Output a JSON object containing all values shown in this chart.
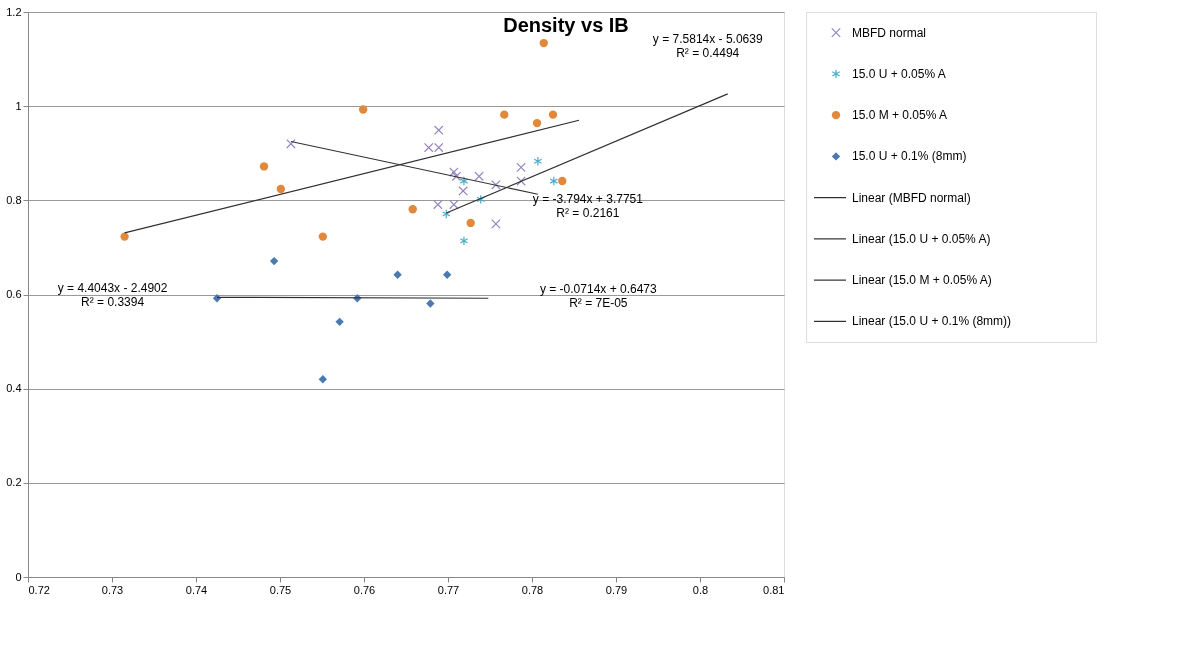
{
  "chart_data": {
    "type": "scatter",
    "title": "Density vs IB",
    "xlim": [
      0.72,
      0.81
    ],
    "xticks": [
      0.72,
      0.73,
      0.74,
      0.75,
      0.76,
      0.77,
      0.78,
      0.79,
      0.8,
      0.81
    ],
    "ylim": [
      0,
      1.2
    ],
    "yticks": [
      0,
      0.2,
      0.4,
      0.6,
      0.8,
      1,
      1.2
    ],
    "grid": "y",
    "legend": "right",
    "series": [
      {
        "name": "MBFD normal",
        "color": "#9585bd",
        "marker": "cross",
        "x": [
          0.7513,
          0.7689,
          0.7677,
          0.7689,
          0.7707,
          0.771,
          0.7737,
          0.7757,
          0.7787,
          0.7787,
          0.7688,
          0.7707,
          0.7718,
          0.7757
        ],
        "values": [
          0.92,
          0.949,
          0.912,
          0.912,
          0.86,
          0.851,
          0.851,
          0.833,
          0.87,
          0.841,
          0.791,
          0.791,
          0.82,
          0.75
        ]
      },
      {
        "name": "15.0 U + 0.05% A",
        "color": "#4bacc6",
        "x": [
          0.7807,
          0.7826,
          0.7719,
          0.7739,
          0.7698,
          0.7719
        ],
        "values": [
          0.883,
          0.841,
          0.841,
          0.802,
          0.771,
          0.714
        ]
      },
      {
        "name": "15.0 M + 0.05% A",
        "color": "#e0893c",
        "marker": "circle",
        "x": [
          0.7315,
          0.7481,
          0.7501,
          0.7551,
          0.7599,
          0.7658,
          0.7727,
          0.7767,
          0.7806,
          0.7825,
          0.7836,
          0.7814
        ],
        "values": [
          0.723,
          0.872,
          0.824,
          0.723,
          0.993,
          0.781,
          0.752,
          0.982,
          0.964,
          0.982,
          0.841,
          1.134
        ]
      },
      {
        "name": "15.0 U + 0.1% (8mm)",
        "color": "#4a7ab0",
        "marker": "diamond",
        "x": [
          0.7425,
          0.7493,
          0.7551,
          0.7571,
          0.7592,
          0.764,
          0.7679,
          0.7699
        ],
        "values": [
          0.592,
          0.671,
          0.42,
          0.542,
          0.592,
          0.642,
          0.581,
          0.642
        ]
      },
      {
        "type": "line",
        "name": "Linear (MBFD normal)",
        "color": "#303030",
        "marker": "none",
        "line_style": "solid",
        "x": [
          0.7513,
          0.7807
        ],
        "values": [
          0.925,
          0.813
        ]
      },
      {
        "type": "line",
        "name": "Linear (15.0 U + 0.05% A)",
        "color": "#303030",
        "marker": "none",
        "line_style": "solid",
        "x": [
          0.7698,
          0.8033
        ],
        "values": [
          0.773,
          1.026
        ]
      },
      {
        "type": "line",
        "name": "Linear (15.0 M + 0.05% A)",
        "color": "#303030",
        "marker": "none",
        "line_style": "solid",
        "x": [
          0.7315,
          0.7856
        ],
        "values": [
          0.731,
          0.97
        ]
      },
      {
        "type": "line",
        "name": "Linear (15.0 U + 0.1% (8mm))",
        "color": "#303030",
        "marker": "none",
        "line_style": "solid",
        "x": [
          0.7425,
          0.7748
        ],
        "values": [
          0.594,
          0.592
        ]
      }
    ],
    "annotations": [
      "y = -3.794x + 3.7751\nR² = 0.2161",
      "y = 7.5814x - 5.0639\nR² = 0.4494",
      "y = 4.4043x - 2.4902\nR² = 0.3394",
      "y = -0.0714x + 0.6473\nR² = 7E-05"
    ]
  }
}
